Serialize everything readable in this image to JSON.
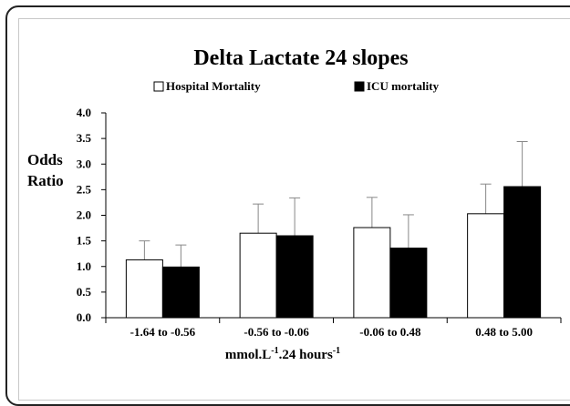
{
  "chart_data": {
    "type": "bar",
    "title": "Delta Lactate 24  slopes",
    "ylabel_lines": [
      "Odds",
      "Ratio"
    ],
    "xlabel": {
      "base1": "mmol.L",
      "sup1": "-1",
      "base2": ".24 hours",
      "sup2": "-1"
    },
    "categories": [
      "-1.64  to -0.56",
      "-0.56 to -0.06",
      "-0.06  to 0.48",
      "0.48 to 5.00"
    ],
    "ylim": [
      0,
      4.0
    ],
    "yticks": [
      0.0,
      0.5,
      1.0,
      1.5,
      2.0,
      2.5,
      3.0,
      3.5,
      4.0
    ],
    "ytick_labels": [
      "0.0",
      "0.5",
      "1.0",
      "1.5",
      "2.0",
      "2.5",
      "3.0",
      "3.5",
      "4.0"
    ],
    "grid": false,
    "legend_position": "top",
    "series": [
      {
        "name": "Hospital Mortality",
        "color": "#ffffff",
        "values": [
          1.13,
          1.65,
          1.76,
          2.03
        ],
        "error_upper": [
          1.5,
          2.22,
          2.35,
          2.61
        ]
      },
      {
        "name": "ICU mortality",
        "color": "#000000",
        "values": [
          0.99,
          1.6,
          1.36,
          2.56
        ],
        "error_upper": [
          1.42,
          2.34,
          2.01,
          3.44
        ]
      }
    ]
  }
}
